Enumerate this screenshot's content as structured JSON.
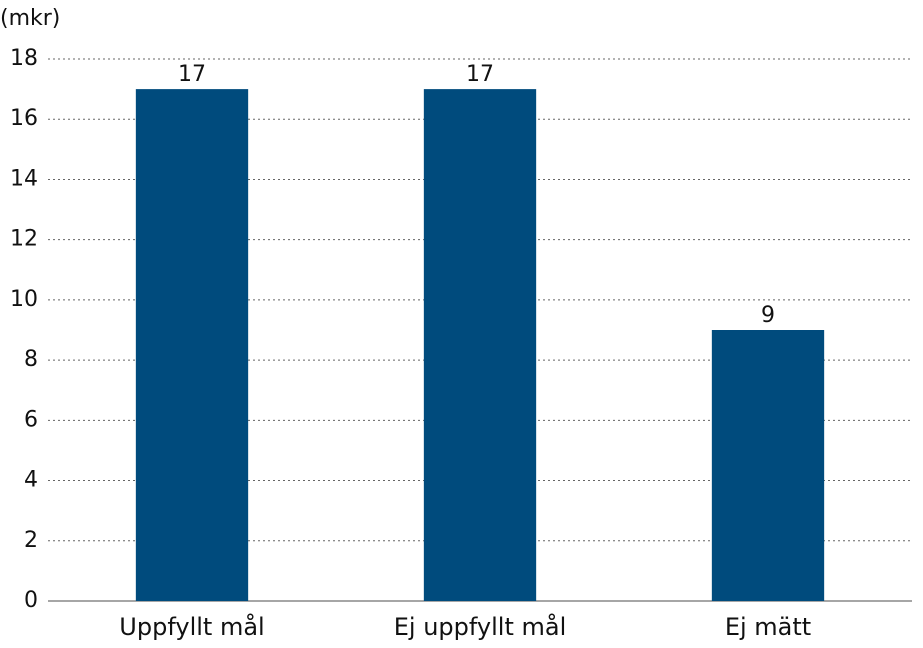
{
  "chart_data": {
    "type": "bar",
    "y_label": "(mkr)",
    "categories": [
      "Uppfyllt mål",
      "Ej uppfyllt mål",
      "Ej mätt"
    ],
    "values": [
      17,
      17,
      9
    ],
    "color": "#004b7d",
    "ylim": [
      0,
      18
    ],
    "yticks": [
      0,
      2,
      4,
      6,
      8,
      10,
      12,
      14,
      16,
      18
    ],
    "grid": true
  }
}
